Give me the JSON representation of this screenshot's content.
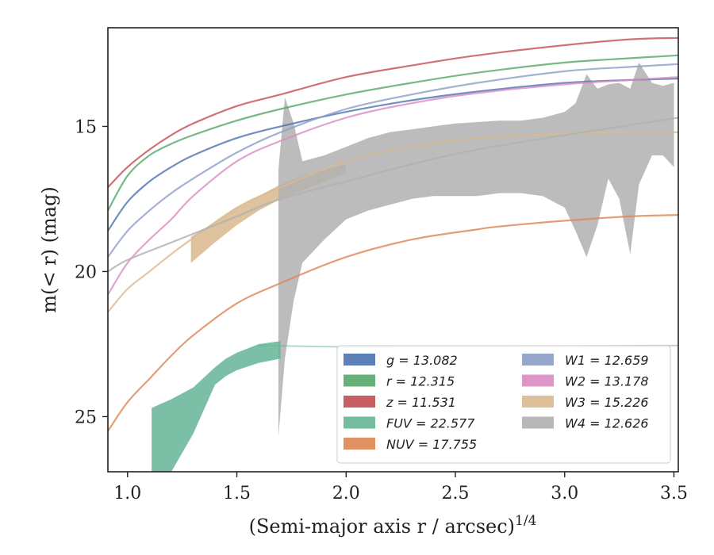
{
  "chart_data": {
    "type": "line",
    "xlabel": "(Semi-major axis r / arcsec)",
    "xlabel_sup": "1/4",
    "ylabel": "m(< r) (mag)",
    "xlim": [
      0.91,
      3.52
    ],
    "ylim": [
      26.9,
      11.6
    ],
    "y_inverted": true,
    "xticks": [
      1.0,
      1.5,
      2.0,
      2.5,
      3.0,
      3.5
    ],
    "xtick_labels": [
      "1.0",
      "1.5",
      "2.0",
      "2.5",
      "3.0",
      "3.5"
    ],
    "yticks": [
      15,
      20,
      25
    ],
    "ytick_labels": [
      "15",
      "20",
      "25"
    ],
    "grid": false,
    "legend_position": "lower-right",
    "legend_columns": 2,
    "series": [
      {
        "name": "g = 13.082",
        "color": "#4c72b0",
        "kind": "line",
        "x": [
          0.91,
          1.0,
          1.1,
          1.2,
          1.3,
          1.5,
          1.7,
          2.0,
          2.3,
          2.6,
          3.0,
          3.3,
          3.52
        ],
        "y": [
          18.6,
          17.6,
          16.9,
          16.4,
          16.0,
          15.4,
          15.0,
          14.5,
          14.1,
          13.8,
          13.5,
          13.4,
          13.35
        ]
      },
      {
        "name": "r = 12.315",
        "color": "#55a868",
        "kind": "line",
        "x": [
          0.91,
          1.0,
          1.1,
          1.2,
          1.3,
          1.5,
          1.7,
          2.0,
          2.3,
          2.6,
          3.0,
          3.3,
          3.52
        ],
        "y": [
          17.9,
          16.7,
          16.0,
          15.6,
          15.3,
          14.8,
          14.4,
          13.9,
          13.5,
          13.15,
          12.8,
          12.65,
          12.55
        ]
      },
      {
        "name": "z = 11.531",
        "color": "#c44e52",
        "kind": "line",
        "x": [
          0.91,
          1.0,
          1.1,
          1.2,
          1.3,
          1.5,
          1.7,
          2.0,
          2.3,
          2.6,
          3.0,
          3.3,
          3.52
        ],
        "y": [
          17.1,
          16.4,
          15.8,
          15.3,
          14.9,
          14.3,
          13.9,
          13.3,
          12.9,
          12.55,
          12.2,
          12.0,
          11.95
        ]
      },
      {
        "name": "FUV = 22.577",
        "color": "#64b596",
        "kind": "band",
        "x": [
          1.11,
          1.2,
          1.3,
          1.4,
          1.45,
          1.5,
          1.6,
          1.7
        ],
        "y_low": [
          26.9,
          26.9,
          25.6,
          23.9,
          23.6,
          23.4,
          23.15,
          23.0
        ],
        "y_high": [
          24.7,
          24.4,
          24.0,
          23.3,
          23.0,
          22.8,
          22.5,
          22.4
        ]
      },
      {
        "name": "NUV = 17.755",
        "color": "#dd8452",
        "kind": "line",
        "x": [
          0.91,
          1.0,
          1.1,
          1.2,
          1.3,
          1.5,
          1.7,
          2.0,
          2.3,
          2.6,
          2.7,
          3.0,
          3.3,
          3.52
        ],
        "y": [
          25.5,
          24.5,
          23.7,
          22.9,
          22.2,
          21.1,
          20.4,
          19.5,
          18.9,
          18.55,
          18.45,
          18.25,
          18.1,
          18.05
        ]
      },
      {
        "name": "W1 = 12.659",
        "color": "#8c9dc7",
        "kind": "line",
        "x": [
          0.91,
          1.0,
          1.1,
          1.2,
          1.3,
          1.5,
          1.7,
          2.0,
          2.3,
          2.6,
          3.0,
          3.3,
          3.52
        ],
        "y": [
          19.5,
          18.6,
          17.9,
          17.3,
          16.8,
          15.9,
          15.2,
          14.4,
          13.9,
          13.5,
          13.1,
          12.95,
          12.85
        ]
      },
      {
        "name": "W2 = 13.178",
        "color": "#da8bc3",
        "kind": "line",
        "x": [
          0.91,
          1.0,
          1.1,
          1.2,
          1.3,
          1.5,
          1.7,
          2.0,
          2.3,
          2.6,
          3.0,
          3.3,
          3.52
        ],
        "y": [
          20.8,
          19.7,
          18.9,
          18.2,
          17.4,
          16.2,
          15.5,
          14.7,
          14.2,
          13.85,
          13.55,
          13.4,
          13.3
        ]
      },
      {
        "name": "W3 = 15.226",
        "color": "#d9b98e",
        "kind": "line",
        "x": [
          0.91,
          1.0,
          1.1,
          1.2,
          1.29,
          1.5,
          1.7,
          2.0,
          2.3,
          2.6,
          3.0,
          3.3,
          3.52
        ],
        "y": [
          21.4,
          20.6,
          20.0,
          19.4,
          18.9,
          17.8,
          17.1,
          16.2,
          15.7,
          15.4,
          15.25,
          15.2,
          15.2
        ]
      },
      {
        "name": "W4 = 12.626",
        "color": "#b0b0b0",
        "kind": "line",
        "x": [
          0.91,
          1.0,
          1.2,
          1.5,
          1.7,
          2.0,
          2.3,
          2.6,
          3.0,
          3.3,
          3.52
        ],
        "y": [
          20.0,
          19.6,
          19.0,
          18.1,
          17.5,
          16.9,
          16.3,
          15.8,
          15.3,
          14.95,
          14.7
        ]
      }
    ],
    "bands": [
      {
        "name": "W3",
        "color": "#d9b98e",
        "x": [
          1.29,
          1.4,
          1.5,
          1.6,
          1.7,
          1.8,
          1.9,
          2.0
        ],
        "y_low": [
          19.7,
          19.0,
          18.4,
          17.9,
          17.5,
          17.2,
          16.9,
          16.6
        ],
        "y_high": [
          18.8,
          18.3,
          17.8,
          17.4,
          17.0,
          16.7,
          16.5,
          16.3
        ]
      },
      {
        "name": "W4",
        "color": "#b0b0b0",
        "x": [
          1.69,
          1.72,
          1.76,
          1.8,
          1.9,
          2.0,
          2.1,
          2.2,
          2.3,
          2.4,
          2.5,
          2.6,
          2.7,
          2.8,
          2.9,
          3.0,
          3.05,
          3.1,
          3.15,
          3.2,
          3.25,
          3.3,
          3.34,
          3.4,
          3.45,
          3.5
        ],
        "y_low": [
          25.7,
          23.0,
          21.0,
          19.7,
          18.9,
          18.2,
          17.9,
          17.7,
          17.5,
          17.4,
          17.4,
          17.4,
          17.3,
          17.3,
          17.4,
          17.8,
          18.6,
          19.5,
          18.4,
          16.8,
          17.5,
          19.4,
          17.0,
          16.0,
          16.0,
          16.4
        ],
        "y_high": [
          16.5,
          14.0,
          14.9,
          16.2,
          16.0,
          15.7,
          15.4,
          15.2,
          15.1,
          15.0,
          14.9,
          14.85,
          14.8,
          14.8,
          14.7,
          14.5,
          14.2,
          13.2,
          13.7,
          13.55,
          13.5,
          13.7,
          12.8,
          13.5,
          13.6,
          13.5
        ]
      }
    ]
  }
}
